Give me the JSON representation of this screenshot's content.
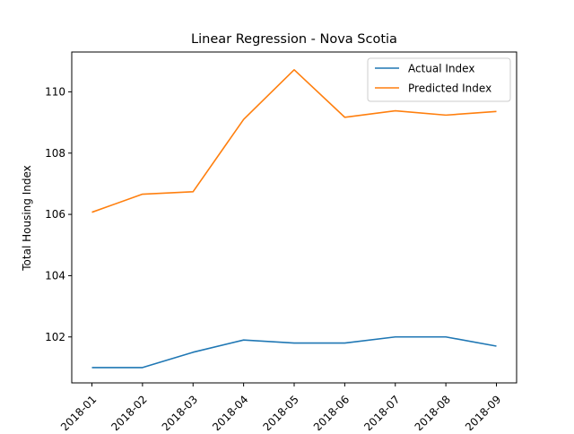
{
  "chart_data": {
    "type": "line",
    "title": "Linear Regression - Nova Scotia",
    "xlabel": "",
    "ylabel": "Total Housing Index",
    "categories": [
      "2018-01",
      "2018-02",
      "2018-03",
      "2018-04",
      "2018-05",
      "2018-06",
      "2018-07",
      "2018-08",
      "2018-09"
    ],
    "yticks": [
      "102",
      "104",
      "106",
      "108",
      "110"
    ],
    "ylim": [
      100.5,
      111.3
    ],
    "grid": false,
    "legend_position": "top-right",
    "series": [
      {
        "name": "Actual Index",
        "color": "#1f77b4",
        "values": [
          101.0,
          101.0,
          101.5,
          101.9,
          101.8,
          101.8,
          102.0,
          102.0,
          101.7
        ]
      },
      {
        "name": "Predicted Index",
        "color": "#ff7f0e",
        "values": [
          106.07,
          106.66,
          106.74,
          109.1,
          110.72,
          109.17,
          109.38,
          109.24,
          109.36
        ]
      }
    ]
  }
}
